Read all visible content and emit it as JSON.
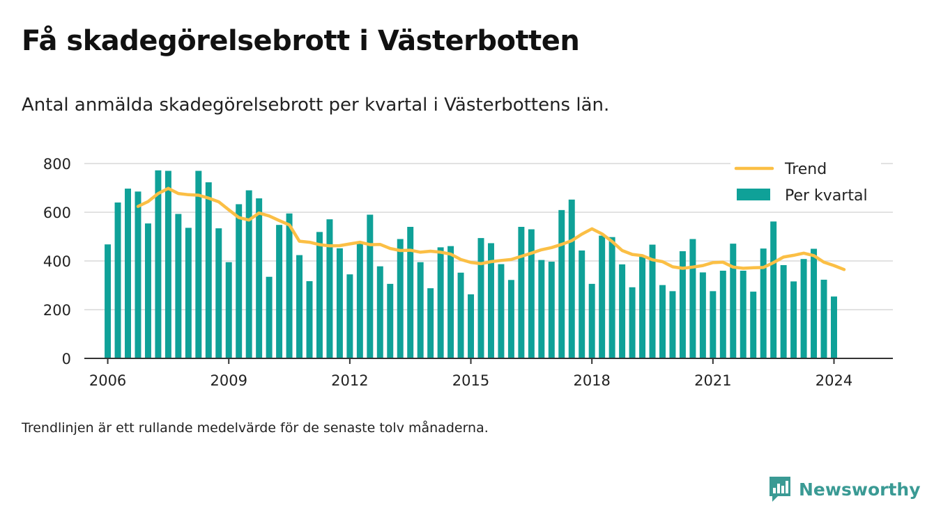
{
  "brand": {
    "name": "Newsworthy",
    "color": "#3a9a94",
    "icon": "newsworthy-logo-icon"
  },
  "chart_data": {
    "type": "bar",
    "title": "Få skadegörelsebrott i Västerbotten",
    "subtitle": "Antal anmälda skadegörelsebrott per kvartal i Västerbottens län.",
    "footnote": "Trendlinjen är ett rullande medelvärde för de senaste tolv månaderna.",
    "xlabel": "",
    "ylabel": "",
    "ylim": [
      0,
      800
    ],
    "yticks": [
      "0",
      "200",
      "400",
      "600",
      "800"
    ],
    "xticks": [
      "2006",
      "2009",
      "2012",
      "2015",
      "2018",
      "2021",
      "2024"
    ],
    "xlim_years": [
      2005.42,
      2025.46
    ],
    "grid": true,
    "legend_position": "top-right",
    "bar_color": "#0fa198",
    "trend_color": "#fbbf45",
    "series": [
      {
        "name": "Per kvartal",
        "type": "bar",
        "values": [
          468,
          640,
          697,
          685,
          554,
          772,
          770,
          593,
          536,
          770,
          723,
          534,
          395,
          633,
          690,
          657,
          335,
          548,
          595,
          424,
          317,
          519,
          571,
          452,
          345,
          471,
          590,
          378,
          306,
          490,
          540,
          395,
          288,
          456,
          461,
          352,
          263,
          494,
          473,
          387,
          322,
          540,
          530,
          404,
          397,
          609,
          652,
          443,
          306,
          504,
          498,
          386,
          292,
          419,
          467,
          301,
          276,
          440,
          490,
          353,
          276,
          360,
          471,
          360,
          274,
          451,
          562,
          383,
          316,
          408,
          450,
          323,
          254
        ]
      },
      {
        "name": "Trend",
        "type": "line",
        "values": [
          624,
          644,
          677,
          698,
          677,
          672,
          670,
          658,
          643,
          610,
          578,
          568,
          597,
          585,
          566,
          548,
          481,
          477,
          467,
          462,
          463,
          470,
          477,
          467,
          468,
          451,
          443,
          444,
          436,
          440,
          436,
          428,
          406,
          394,
          389,
          397,
          402,
          406,
          419,
          432,
          446,
          455,
          468,
          483,
          510,
          532,
          511,
          480,
          443,
          427,
          422,
          405,
          397,
          376,
          370,
          375,
          381,
          393,
          395,
          375,
          370,
          372,
          373,
          393,
          416,
          423,
          432,
          422,
          395,
          381,
          365
        ]
      }
    ]
  }
}
